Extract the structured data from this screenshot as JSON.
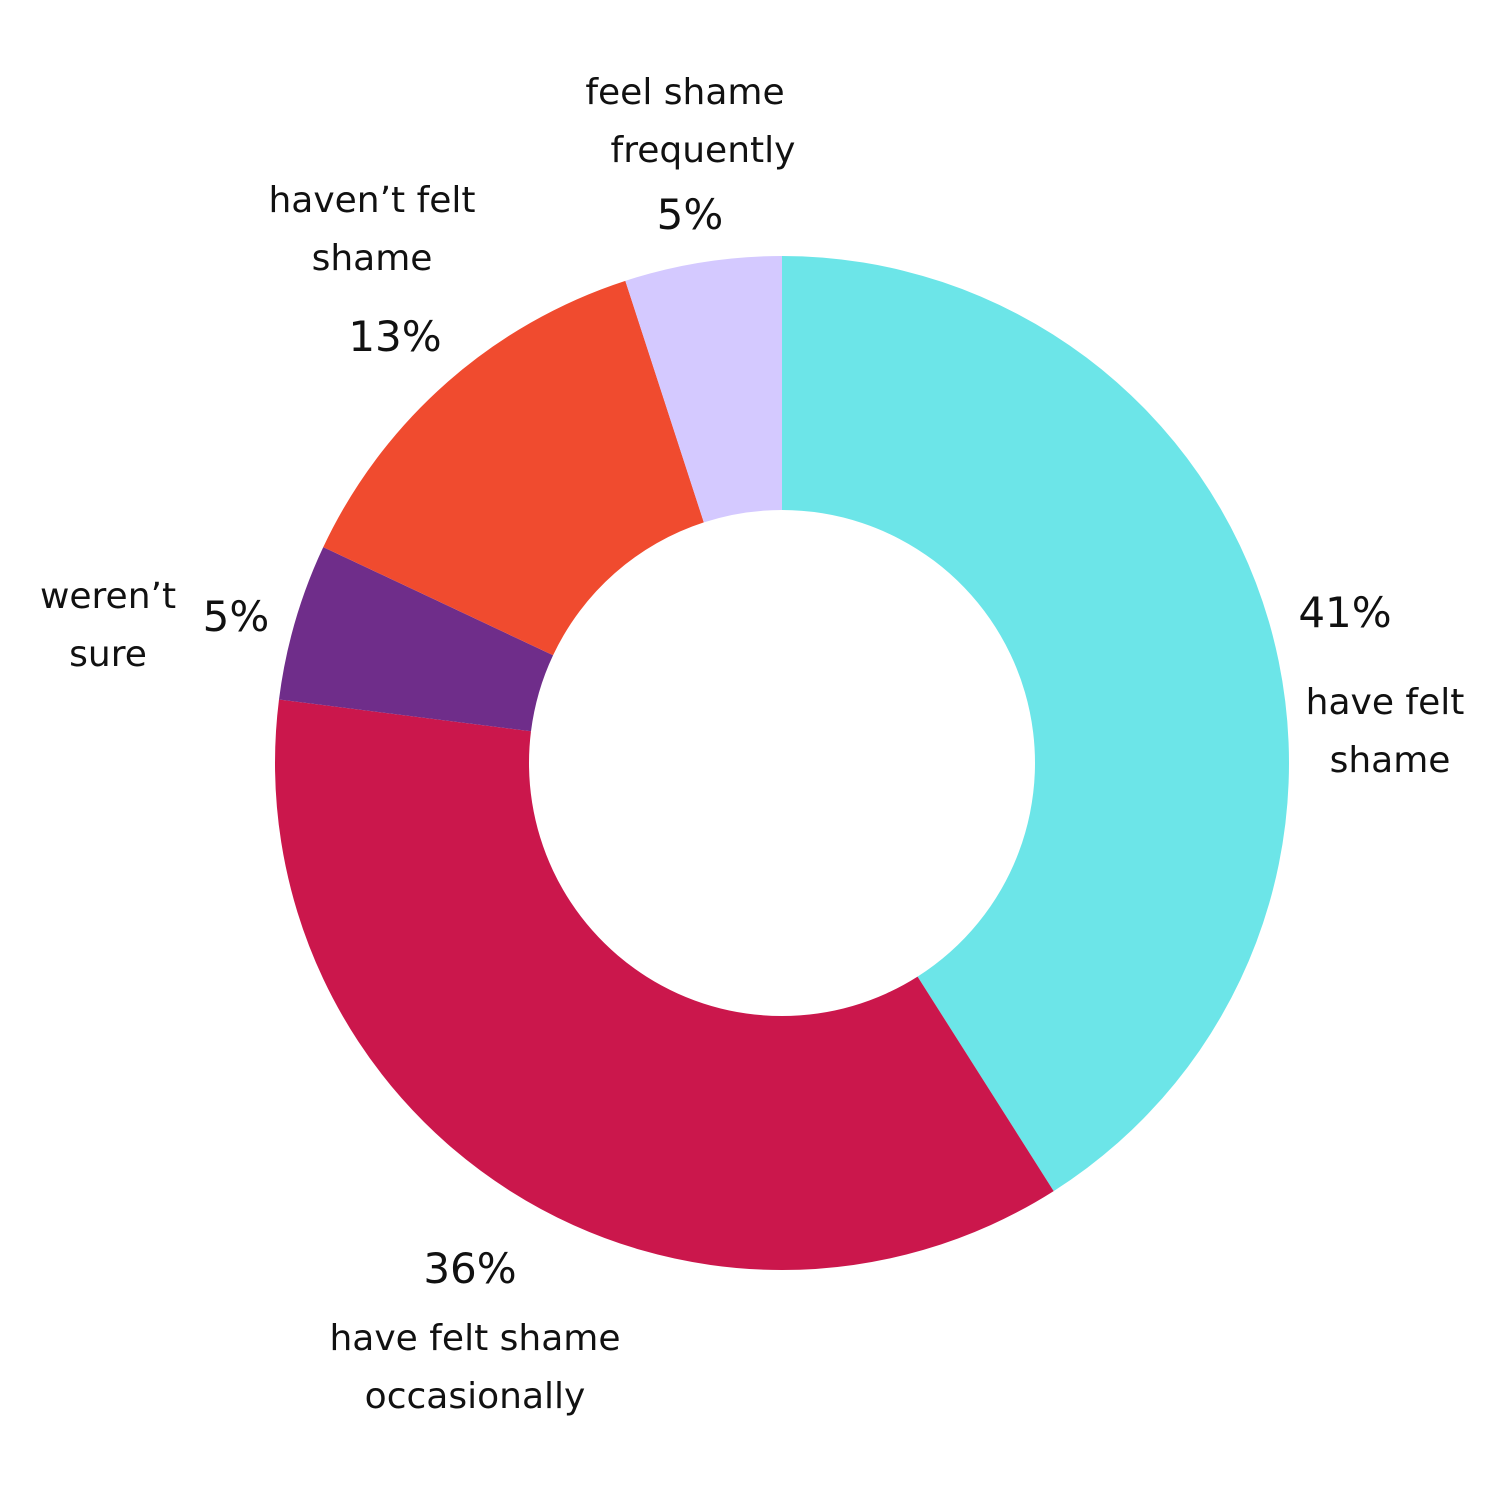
{
  "chart_data": {
    "type": "pie",
    "subtype": "donut",
    "title": "",
    "start_angle_deg": 0,
    "direction": "clockwise",
    "center": [
      782,
      763
    ],
    "outer_radius": 507,
    "inner_radius": 253,
    "categories": [
      "have felt shame",
      "have felt shame occasionally",
      "weren't sure",
      "haven't felt shame",
      "feel shame frequently"
    ],
    "values": [
      41,
      36,
      5,
      13,
      5
    ],
    "colors": [
      "#6ce5e8",
      "#cb174c",
      "#6f2d8a",
      "#f04b2f",
      "#d4c9ff"
    ],
    "legend": "none"
  },
  "labels": [
    {
      "id": "have-felt-shame",
      "pct": "41%",
      "line1": "have felt",
      "line2": "shame"
    },
    {
      "id": "occasionally",
      "pct": "36%",
      "line1": "have felt shame",
      "line2": "occasionally"
    },
    {
      "id": "werent-sure",
      "pct": "5%",
      "line1": "weren’t",
      "line2": "sure"
    },
    {
      "id": "havent-felt",
      "pct": "13%",
      "line1": "haven’t felt",
      "line2": "shame"
    },
    {
      "id": "frequently",
      "pct": "5%",
      "line1": "feel shame",
      "line2": "frequently"
    }
  ]
}
